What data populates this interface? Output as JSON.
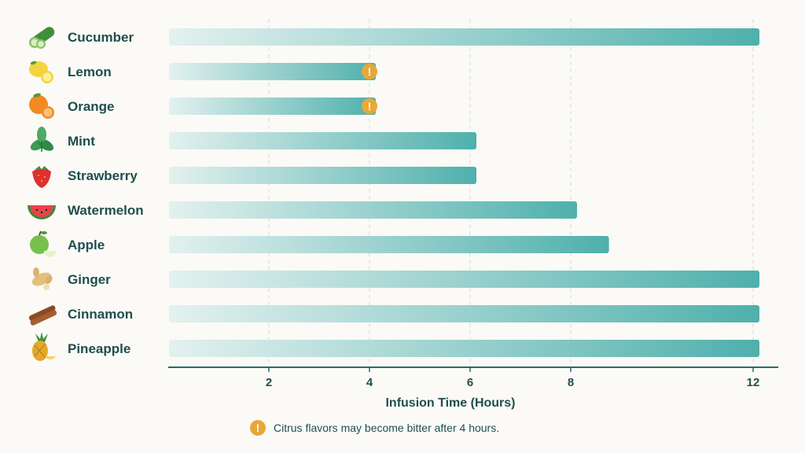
{
  "chart_data": {
    "type": "bar",
    "orientation": "horizontal",
    "categories": [
      "Cucumber",
      "Lemon",
      "Orange",
      "Mint",
      "Strawberry",
      "Watermelon",
      "Apple",
      "Ginger",
      "Cinnamon",
      "Pineapple"
    ],
    "icons": [
      "cucumber-icon",
      "lemon-icon",
      "orange-icon",
      "mint-icon",
      "strawberry-icon",
      "watermelon-icon",
      "apple-icon",
      "ginger-icon",
      "cinnamon-icon",
      "pineapple-icon"
    ],
    "values": [
      12,
      4,
      4,
      6,
      6,
      8,
      8.7,
      12,
      12,
      12
    ],
    "warnings": [
      false,
      true,
      true,
      false,
      false,
      false,
      false,
      false,
      false,
      false
    ],
    "xlabel": "Infusion Time (Hours)",
    "ticks": [
      2,
      4,
      6,
      8,
      12
    ],
    "xlim": [
      0,
      12
    ],
    "grid": "vertical-dashed",
    "bar_gradient": [
      "#e3f1ef",
      "#4fb0ac"
    ],
    "warning_color": "#e8a83a",
    "axis_color": "#2c6a6b"
  },
  "note": {
    "text": "Citrus flavors may become bitter after 4 hours.",
    "icon": "warning-icon"
  }
}
